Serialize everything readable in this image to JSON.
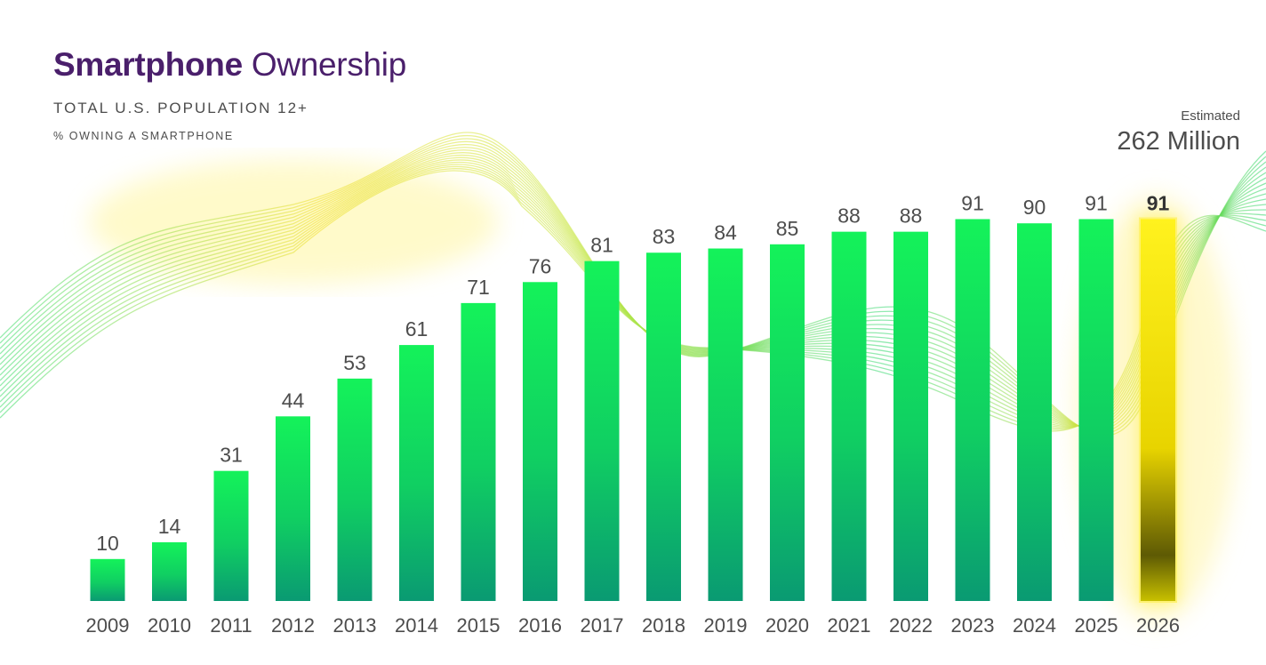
{
  "header": {
    "title_bold": "Smartphone",
    "title_light": "Ownership",
    "subtitle": "TOTAL U.S. POPULATION 12+",
    "ylabel": "% OWNING A SMARTPHONE"
  },
  "annotation": {
    "label": "Estimated",
    "value": "262 Million"
  },
  "colors": {
    "title": "#4a1f6b",
    "bar_top": "#14f25a",
    "bar_bottom": "#0a9a72",
    "highlight": "#ffe21a",
    "text": "#4d4d4d"
  },
  "chart_data": {
    "type": "bar",
    "title": "Smartphone Ownership",
    "subtitle": "TOTAL U.S. POPULATION 12+",
    "xlabel": "",
    "ylabel": "% OWNING A SMARTPHONE",
    "ylim": [
      0,
      100
    ],
    "grid": false,
    "legend": "none",
    "categories": [
      "2009",
      "2010",
      "2011",
      "2012",
      "2013",
      "2014",
      "2015",
      "2016",
      "2017",
      "2018",
      "2019",
      "2020",
      "2021",
      "2022",
      "2023",
      "2024",
      "2025",
      "2026"
    ],
    "values": [
      10,
      14,
      31,
      44,
      53,
      61,
      71,
      76,
      81,
      83,
      84,
      85,
      88,
      88,
      91,
      90,
      91,
      91
    ],
    "highlighted_category": "2026",
    "annotation": "Estimated 262 Million"
  }
}
